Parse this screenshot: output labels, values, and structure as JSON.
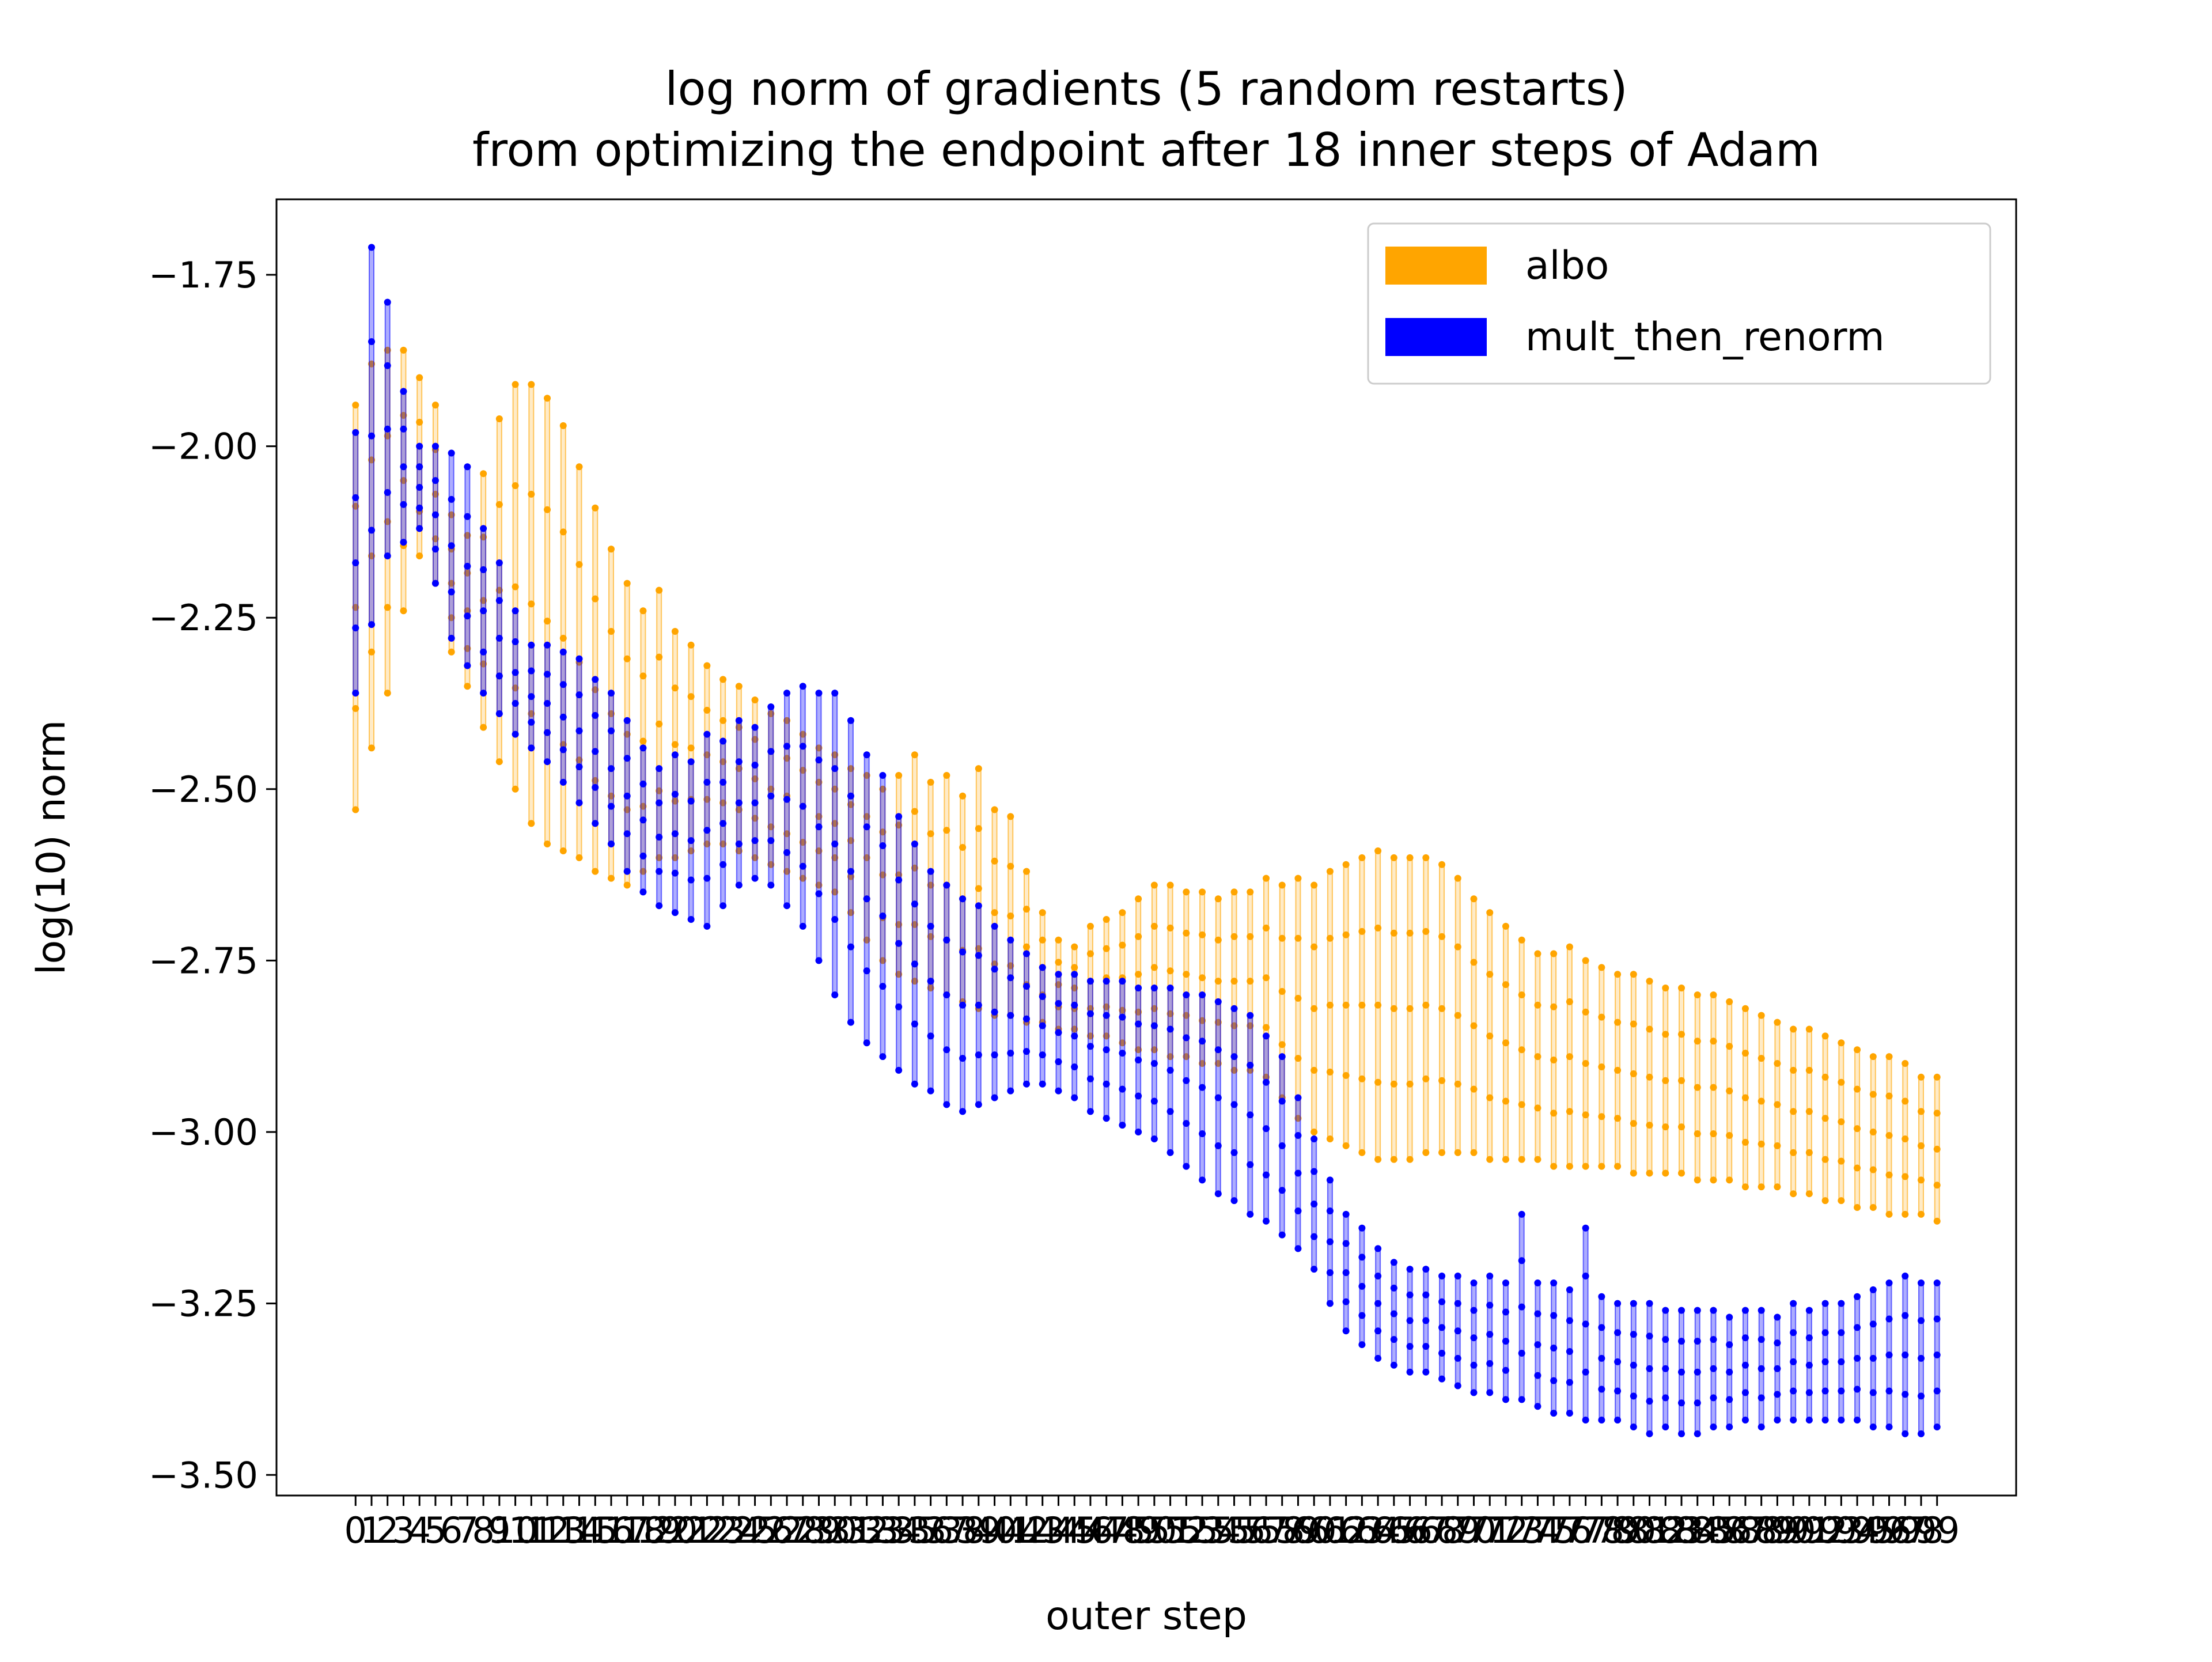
{
  "chart_data": {
    "type": "scatter",
    "title": "log norm of gradients (5 random restarts)",
    "subtitle": "from optimizing the endpoint after 18 inner steps of Adam",
    "xlabel": "outer step",
    "ylabel": "log(10) norm",
    "xlim": [
      -4.95,
      103.95
    ],
    "ylim": [
      -3.53,
      -1.64
    ],
    "y_ticks": [
      -1.75,
      -2.0,
      -2.25,
      -2.5,
      -2.75,
      -3.0,
      -3.25,
      -3.5
    ],
    "y_tick_labels": [
      "−1.75",
      "−2.00",
      "−2.25",
      "−2.50",
      "−2.75",
      "−3.00",
      "−3.25",
      "−3.50"
    ],
    "x_tick_labels": [
      "0",
      "1",
      "2",
      "3",
      "4",
      "5",
      "6",
      "7",
      "8",
      "9",
      "10",
      "11",
      "12",
      "13",
      "14",
      "15",
      "16",
      "17",
      "18",
      "19",
      "20",
      "21",
      "22",
      "23",
      "24",
      "25",
      "26",
      "27",
      "28",
      "29",
      "30",
      "31",
      "32",
      "33",
      "34",
      "35",
      "36",
      "37",
      "38",
      "39",
      "40",
      "41",
      "42",
      "43",
      "44",
      "45",
      "46",
      "47",
      "48",
      "49",
      "50",
      "51",
      "52",
      "53",
      "54",
      "55",
      "56",
      "57",
      "58",
      "59",
      "60",
      "61",
      "62",
      "63",
      "64",
      "65",
      "66",
      "67",
      "68",
      "69",
      "70",
      "71",
      "72",
      "73",
      "74",
      "75",
      "76",
      "77",
      "78",
      "79",
      "80",
      "81",
      "82",
      "83",
      "84",
      "85",
      "86",
      "87",
      "88",
      "89",
      "90",
      "91",
      "92",
      "93",
      "94",
      "95",
      "96",
      "97",
      "98",
      "99"
    ],
    "grid": false,
    "legend_position": "top-right",
    "series": [
      {
        "name": "albo",
        "color": "#ffa500",
        "max_per_step": [
          -1.94,
          -1.88,
          -1.86,
          -1.86,
          -1.9,
          -1.94,
          -2.1,
          -2.13,
          -2.04,
          -1.96,
          -1.91,
          -1.91,
          -1.93,
          -1.97,
          -2.03,
          -2.09,
          -2.15,
          -2.2,
          -2.24,
          -2.21,
          -2.27,
          -2.29,
          -2.32,
          -2.34,
          -2.35,
          -2.37,
          -2.39,
          -2.4,
          -2.42,
          -2.44,
          -2.45,
          -2.47,
          -2.48,
          -2.5,
          -2.48,
          -2.45,
          -2.49,
          -2.48,
          -2.51,
          -2.47,
          -2.53,
          -2.54,
          -2.62,
          -2.68,
          -2.72,
          -2.73,
          -2.7,
          -2.69,
          -2.68,
          -2.66,
          -2.64,
          -2.64,
          -2.65,
          -2.65,
          -2.66,
          -2.65,
          -2.65,
          -2.63,
          -2.64,
          -2.63,
          -2.64,
          -2.62,
          -2.61,
          -2.6,
          -2.59,
          -2.6,
          -2.6,
          -2.6,
          -2.61,
          -2.63,
          -2.66,
          -2.68,
          -2.7,
          -2.72,
          -2.74,
          -2.74,
          -2.73,
          -2.75,
          -2.76,
          -2.77,
          -2.77,
          -2.78,
          -2.79,
          -2.79,
          -2.8,
          -2.8,
          -2.81,
          -2.82,
          -2.83,
          -2.84,
          -2.85,
          -2.85,
          -2.86,
          -2.87,
          -2.88,
          -2.89,
          -2.89,
          -2.9,
          -2.92,
          -2.92
        ],
        "min_per_step": [
          -2.53,
          -2.44,
          -2.36,
          -2.24,
          -2.16,
          -2.2,
          -2.3,
          -2.35,
          -2.41,
          -2.46,
          -2.5,
          -2.55,
          -2.58,
          -2.59,
          -2.6,
          -2.62,
          -2.63,
          -2.64,
          -2.62,
          -2.6,
          -2.6,
          -2.59,
          -2.58,
          -2.58,
          -2.59,
          -2.6,
          -2.61,
          -2.62,
          -2.63,
          -2.64,
          -2.65,
          -2.68,
          -2.72,
          -2.75,
          -2.77,
          -2.78,
          -2.79,
          -2.8,
          -2.81,
          -2.82,
          -2.83,
          -2.83,
          -2.84,
          -2.84,
          -2.85,
          -2.85,
          -2.86,
          -2.86,
          -2.87,
          -2.88,
          -2.88,
          -2.89,
          -2.89,
          -2.9,
          -2.9,
          -2.91,
          -2.91,
          -2.92,
          -2.95,
          -2.98,
          -3.0,
          -3.01,
          -3.02,
          -3.03,
          -3.04,
          -3.04,
          -3.04,
          -3.03,
          -3.03,
          -3.03,
          -3.03,
          -3.04,
          -3.04,
          -3.04,
          -3.04,
          -3.05,
          -3.05,
          -3.05,
          -3.05,
          -3.05,
          -3.06,
          -3.06,
          -3.06,
          -3.06,
          -3.07,
          -3.07,
          -3.07,
          -3.08,
          -3.08,
          -3.08,
          -3.09,
          -3.09,
          -3.1,
          -3.1,
          -3.11,
          -3.11,
          -3.12,
          -3.12,
          -3.12,
          -3.13
        ]
      },
      {
        "name": "mult_then_renorm",
        "color": "#0000ff",
        "max_per_step": [
          -1.98,
          -1.71,
          -1.79,
          -1.92,
          -2.0,
          -2.0,
          -2.01,
          -2.03,
          -2.12,
          -2.17,
          -2.24,
          -2.29,
          -2.29,
          -2.3,
          -2.31,
          -2.34,
          -2.36,
          -2.4,
          -2.44,
          -2.47,
          -2.45,
          -2.46,
          -2.42,
          -2.43,
          -2.4,
          -2.41,
          -2.38,
          -2.36,
          -2.35,
          -2.36,
          -2.36,
          -2.4,
          -2.45,
          -2.48,
          -2.54,
          -2.58,
          -2.62,
          -2.64,
          -2.66,
          -2.67,
          -2.7,
          -2.72,
          -2.74,
          -2.76,
          -2.77,
          -2.77,
          -2.78,
          -2.78,
          -2.78,
          -2.79,
          -2.79,
          -2.79,
          -2.8,
          -2.8,
          -2.81,
          -2.82,
          -2.83,
          -2.86,
          -2.89,
          -2.95,
          -3.01,
          -3.07,
          -3.12,
          -3.14,
          -3.17,
          -3.19,
          -3.2,
          -3.2,
          -3.21,
          -3.21,
          -3.22,
          -3.21,
          -3.22,
          -3.12,
          -3.22,
          -3.22,
          -3.23,
          -3.14,
          -3.24,
          -3.25,
          -3.25,
          -3.25,
          -3.26,
          -3.26,
          -3.26,
          -3.26,
          -3.27,
          -3.26,
          -3.26,
          -3.27,
          -3.25,
          -3.26,
          -3.25,
          -3.25,
          -3.24,
          -3.23,
          -3.22,
          -3.21,
          -3.22,
          -3.22
        ],
        "min_per_step": [
          -2.36,
          -2.26,
          -2.16,
          -2.14,
          -2.12,
          -2.2,
          -2.28,
          -2.32,
          -2.36,
          -2.39,
          -2.42,
          -2.44,
          -2.46,
          -2.49,
          -2.52,
          -2.55,
          -2.58,
          -2.62,
          -2.65,
          -2.67,
          -2.68,
          -2.69,
          -2.7,
          -2.67,
          -2.64,
          -2.63,
          -2.64,
          -2.67,
          -2.7,
          -2.75,
          -2.8,
          -2.84,
          -2.87,
          -2.89,
          -2.91,
          -2.93,
          -2.94,
          -2.96,
          -2.97,
          -2.96,
          -2.95,
          -2.94,
          -2.93,
          -2.93,
          -2.94,
          -2.95,
          -2.97,
          -2.98,
          -2.99,
          -3.0,
          -3.01,
          -3.03,
          -3.05,
          -3.07,
          -3.09,
          -3.1,
          -3.12,
          -3.13,
          -3.15,
          -3.17,
          -3.2,
          -3.25,
          -3.29,
          -3.31,
          -3.33,
          -3.34,
          -3.35,
          -3.35,
          -3.36,
          -3.37,
          -3.38,
          -3.38,
          -3.39,
          -3.39,
          -3.4,
          -3.41,
          -3.41,
          -3.42,
          -3.42,
          -3.42,
          -3.43,
          -3.44,
          -3.43,
          -3.44,
          -3.44,
          -3.43,
          -3.43,
          -3.42,
          -3.43,
          -3.42,
          -3.42,
          -3.42,
          -3.42,
          -3.42,
          -3.42,
          -3.43,
          -3.43,
          -3.44,
          -3.44,
          -3.43
        ]
      }
    ]
  }
}
